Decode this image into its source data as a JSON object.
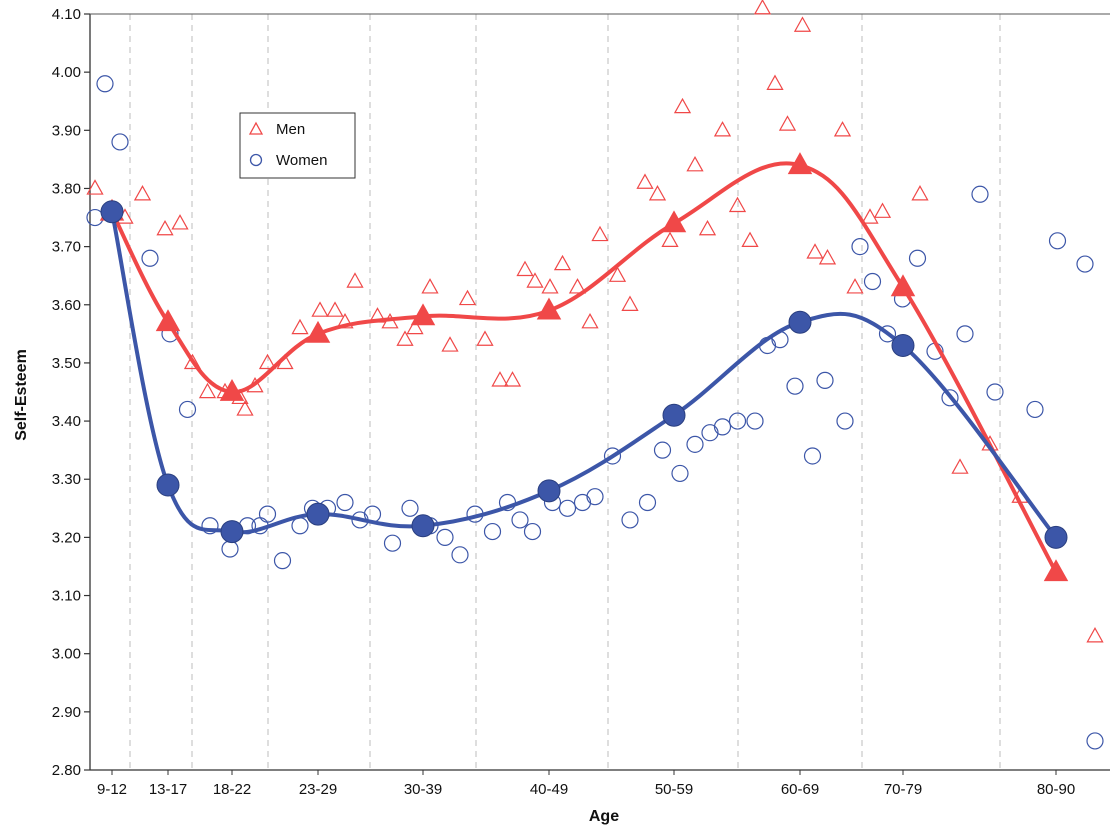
{
  "chart_data": {
    "type": "scatter",
    "xlabel": "Age",
    "ylabel": "Self-Esteem",
    "x_categories": [
      "9-12",
      "13-17",
      "18-22",
      "23-29",
      "30-39",
      "40-49",
      "50-59",
      "60-69",
      "70-79",
      "80-90"
    ],
    "ylim": [
      2.8,
      4.1
    ],
    "yticks": [
      "2.80",
      "2.90",
      "3.00",
      "3.10",
      "3.20",
      "3.30",
      "3.40",
      "3.50",
      "3.60",
      "3.70",
      "3.80",
      "3.90",
      "4.00",
      "4.10"
    ],
    "grid": "dashed vertical lines at age groups",
    "legend_position": "top-left",
    "series": [
      {
        "name": "Men",
        "color": "#f04848",
        "marker": "triangle",
        "means": [
          3.76,
          3.57,
          3.45,
          3.55,
          3.58,
          3.59,
          3.74,
          3.84,
          3.63,
          3.14
        ],
        "raw_points": [
          [
            9.1,
            3.8
          ],
          [
            9.4,
            3.76
          ],
          [
            9.7,
            3.75
          ],
          [
            10.05,
            3.79
          ],
          [
            10.5,
            3.73
          ],
          [
            10.8,
            3.74
          ],
          [
            11.05,
            3.5
          ],
          [
            11.35,
            3.45
          ],
          [
            11.7,
            3.45
          ],
          [
            12.0,
            3.44
          ],
          [
            12.1,
            3.42
          ],
          [
            12.3,
            3.46
          ],
          [
            12.55,
            3.5
          ],
          [
            12.9,
            3.5
          ],
          [
            13.2,
            3.56
          ],
          [
            13.6,
            3.59
          ],
          [
            13.9,
            3.59
          ],
          [
            14.1,
            3.57
          ],
          [
            14.3,
            3.64
          ],
          [
            14.75,
            3.58
          ],
          [
            15.0,
            3.57
          ],
          [
            15.3,
            3.54
          ],
          [
            15.5,
            3.56
          ],
          [
            15.8,
            3.63
          ],
          [
            16.2,
            3.53
          ],
          [
            16.55,
            3.61
          ],
          [
            16.9,
            3.54
          ],
          [
            17.2,
            3.47
          ],
          [
            17.45,
            3.47
          ],
          [
            17.7,
            3.66
          ],
          [
            17.9,
            3.64
          ],
          [
            18.2,
            3.63
          ],
          [
            18.45,
            3.67
          ],
          [
            18.75,
            3.63
          ],
          [
            19.0,
            3.57
          ],
          [
            19.2,
            3.72
          ],
          [
            19.55,
            3.65
          ],
          [
            19.8,
            3.6
          ],
          [
            20.1,
            3.81
          ],
          [
            20.35,
            3.79
          ],
          [
            20.6,
            3.71
          ],
          [
            20.85,
            3.94
          ],
          [
            21.1,
            3.84
          ],
          [
            21.35,
            3.73
          ],
          [
            21.65,
            3.9
          ],
          [
            21.95,
            3.77
          ],
          [
            22.2,
            3.71
          ],
          [
            22.45,
            4.11
          ],
          [
            22.7,
            3.98
          ],
          [
            22.95,
            3.91
          ],
          [
            23.25,
            4.08
          ],
          [
            23.5,
            3.69
          ],
          [
            23.75,
            3.68
          ],
          [
            24.05,
            3.9
          ],
          [
            24.3,
            3.63
          ],
          [
            24.6,
            3.75
          ],
          [
            24.85,
            3.76
          ],
          [
            25.6,
            3.79
          ],
          [
            26.4,
            3.32
          ],
          [
            27.0,
            3.36
          ],
          [
            27.6,
            3.27
          ],
          [
            29.1,
            3.03
          ]
        ]
      },
      {
        "name": "Women",
        "color": "#3c56a8",
        "marker": "circle",
        "means": [
          3.76,
          3.29,
          3.21,
          3.24,
          3.22,
          3.28,
          3.41,
          3.57,
          3.53,
          3.2
        ],
        "raw_points": [
          [
            9.1,
            3.75
          ],
          [
            9.3,
            3.98
          ],
          [
            9.6,
            3.88
          ],
          [
            10.2,
            3.68
          ],
          [
            10.6,
            3.55
          ],
          [
            10.95,
            3.42
          ],
          [
            11.4,
            3.22
          ],
          [
            11.8,
            3.18
          ],
          [
            12.15,
            3.22
          ],
          [
            12.4,
            3.22
          ],
          [
            12.55,
            3.24
          ],
          [
            12.85,
            3.16
          ],
          [
            13.2,
            3.22
          ],
          [
            13.45,
            3.25
          ],
          [
            13.75,
            3.25
          ],
          [
            14.1,
            3.26
          ],
          [
            14.4,
            3.23
          ],
          [
            14.65,
            3.24
          ],
          [
            15.05,
            3.19
          ],
          [
            15.4,
            3.25
          ],
          [
            15.8,
            3.22
          ],
          [
            16.1,
            3.2
          ],
          [
            16.4,
            3.17
          ],
          [
            16.7,
            3.24
          ],
          [
            17.05,
            3.21
          ],
          [
            17.35,
            3.26
          ],
          [
            17.6,
            3.23
          ],
          [
            17.85,
            3.21
          ],
          [
            18.25,
            3.26
          ],
          [
            18.55,
            3.25
          ],
          [
            18.85,
            3.26
          ],
          [
            19.1,
            3.27
          ],
          [
            19.45,
            3.34
          ],
          [
            19.8,
            3.23
          ],
          [
            20.15,
            3.26
          ],
          [
            20.45,
            3.35
          ],
          [
            20.8,
            3.31
          ],
          [
            21.1,
            3.36
          ],
          [
            21.4,
            3.38
          ],
          [
            21.65,
            3.39
          ],
          [
            21.95,
            3.4
          ],
          [
            22.3,
            3.4
          ],
          [
            22.55,
            3.53
          ],
          [
            22.8,
            3.54
          ],
          [
            23.1,
            3.46
          ],
          [
            23.45,
            3.34
          ],
          [
            23.7,
            3.47
          ],
          [
            24.1,
            3.4
          ],
          [
            24.4,
            3.7
          ],
          [
            24.65,
            3.64
          ],
          [
            24.95,
            3.55
          ],
          [
            25.25,
            3.61
          ],
          [
            25.55,
            3.68
          ],
          [
            25.9,
            3.52
          ],
          [
            26.2,
            3.44
          ],
          [
            26.5,
            3.55
          ],
          [
            26.8,
            3.79
          ],
          [
            27.1,
            3.45
          ],
          [
            27.9,
            3.42
          ],
          [
            28.35,
            3.71
          ],
          [
            28.9,
            3.67
          ],
          [
            29.1,
            2.85
          ]
        ]
      }
    ]
  },
  "legend": {
    "men_label": "Men",
    "women_label": "Women"
  }
}
